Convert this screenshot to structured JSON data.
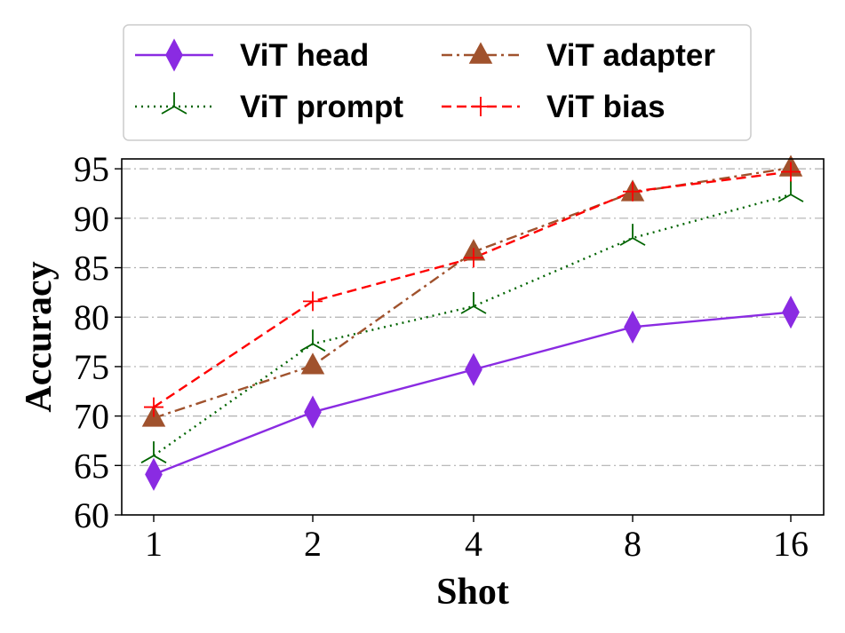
{
  "chart_data": {
    "type": "line",
    "categories": [
      "1",
      "2",
      "4",
      "8",
      "16"
    ],
    "xlabel": "Shot",
    "ylabel": "Accuracy",
    "ylim": [
      60,
      96
    ],
    "yticks": [
      "60",
      "65",
      "70",
      "75",
      "80",
      "85",
      "90",
      "95"
    ],
    "grid": "horizontal dash-dot",
    "legend_position": "top, above plot, 2 columns",
    "series": [
      {
        "name": "ViT head",
        "color": "#8a2be2",
        "marker": "thin-diamond",
        "linestyle": "solid",
        "values": [
          64.1,
          70.4,
          74.7,
          79.0,
          80.5
        ]
      },
      {
        "name": "ViT prompt",
        "color": "#006400",
        "marker": "tri-up",
        "linestyle": "dotted",
        "values": [
          66.0,
          77.3,
          81.1,
          88.0,
          92.4
        ]
      },
      {
        "name": "ViT adapter",
        "color": "#a0522d",
        "marker": "triangle",
        "linestyle": "dash-dot",
        "values": [
          69.8,
          75.1,
          86.6,
          92.6,
          95.1
        ]
      },
      {
        "name": "ViT bias",
        "color": "#ff0000",
        "marker": "plus",
        "linestyle": "dashed",
        "values": [
          70.9,
          81.6,
          86.0,
          92.7,
          94.7
        ]
      }
    ]
  }
}
